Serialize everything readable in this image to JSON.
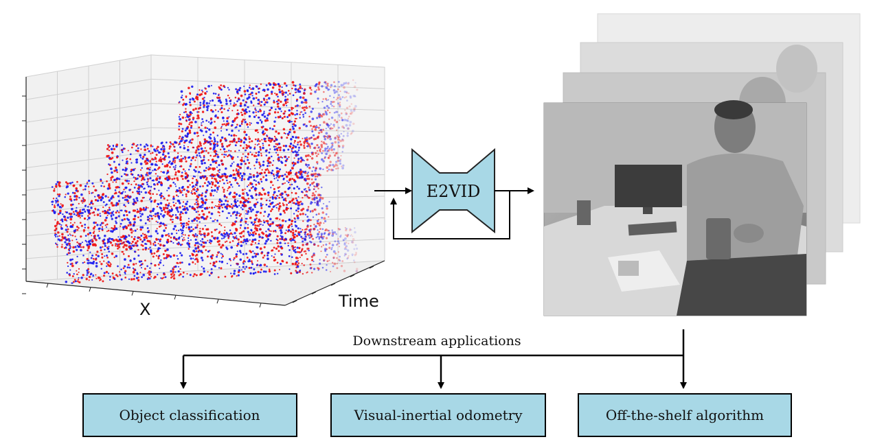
{
  "plot": {
    "x_label": "X",
    "time_label": "Time",
    "colors": {
      "positive": "#ee1111",
      "negative": "#1a1aee"
    }
  },
  "network": {
    "label": "E2VID",
    "fill": "#a8d8e6"
  },
  "downstream": {
    "title": "Downstream applications",
    "boxes": [
      {
        "label": "Object classification"
      },
      {
        "label": "Visual-inertial odometry"
      },
      {
        "label": "Off-the-shelf algorithm"
      }
    ]
  },
  "frames": {
    "count": 4,
    "content": "grayscale reconstructed video frames"
  }
}
